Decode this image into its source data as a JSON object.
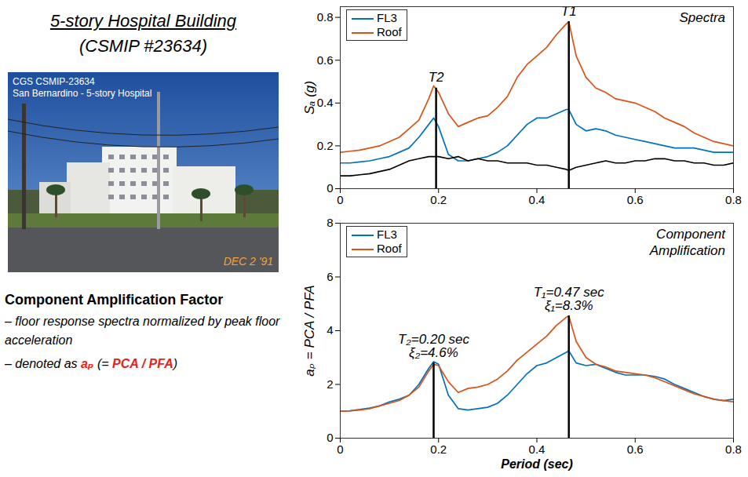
{
  "slide": {
    "title": "5-story Hospital Building",
    "subtitle": "(CSMIP #23634)",
    "photo": {
      "caption": [
        "CGS CSMIP-23634",
        "San Bernardino - 5-story Hospital"
      ],
      "date": "DEC 2 '91"
    },
    "heading": "Component Amplification Factor",
    "notes": [
      [
        {
          "text": "– floor response spectra normalized by peak floor acceleration"
        }
      ],
      [
        {
          "text": "– denoted as "
        },
        {
          "text": "aₚ",
          "color": "#e8211b"
        },
        {
          "text": " (= "
        },
        {
          "text": "PCA / PFA",
          "color": "#e8211b"
        },
        {
          "text": ")"
        }
      ]
    ]
  },
  "chart_data": [
    {
      "type": "line",
      "title": "Spectra",
      "ylabel": "Sₐ (g)",
      "x": [
        0,
        0.02,
        0.04,
        0.06,
        0.08,
        0.1,
        0.12,
        0.14,
        0.16,
        0.18,
        0.19,
        0.2,
        0.22,
        0.24,
        0.26,
        0.28,
        0.3,
        0.32,
        0.34,
        0.36,
        0.38,
        0.4,
        0.42,
        0.44,
        0.46,
        0.465,
        0.48,
        0.5,
        0.52,
        0.54,
        0.56,
        0.58,
        0.6,
        0.62,
        0.64,
        0.66,
        0.68,
        0.7,
        0.72,
        0.74,
        0.76,
        0.78,
        0.8
      ],
      "xlim": [
        0,
        0.8
      ],
      "xticks": [
        0,
        0.2,
        0.4,
        0.6,
        0.8
      ],
      "ylim": [
        0,
        0.85
      ],
      "yticks": [
        0,
        0.2,
        0.4,
        0.6,
        0.8
      ],
      "grid": false,
      "legend": "top-left",
      "series": [
        {
          "name": "FL3",
          "color": "#0072bd",
          "values": [
            0.12,
            0.12,
            0.125,
            0.13,
            0.14,
            0.15,
            0.17,
            0.19,
            0.24,
            0.3,
            0.33,
            0.29,
            0.16,
            0.13,
            0.13,
            0.14,
            0.15,
            0.17,
            0.2,
            0.25,
            0.3,
            0.33,
            0.33,
            0.35,
            0.37,
            0.37,
            0.3,
            0.27,
            0.28,
            0.27,
            0.25,
            0.24,
            0.23,
            0.22,
            0.21,
            0.2,
            0.19,
            0.19,
            0.19,
            0.18,
            0.17,
            0.17,
            0.17
          ]
        },
        {
          "name": "Roof",
          "color": "#d95319",
          "values": [
            0.17,
            0.175,
            0.18,
            0.19,
            0.2,
            0.22,
            0.24,
            0.28,
            0.32,
            0.42,
            0.48,
            0.45,
            0.35,
            0.29,
            0.31,
            0.33,
            0.34,
            0.38,
            0.43,
            0.52,
            0.58,
            0.62,
            0.66,
            0.72,
            0.77,
            0.78,
            0.62,
            0.52,
            0.47,
            0.45,
            0.42,
            0.41,
            0.4,
            0.38,
            0.36,
            0.33,
            0.31,
            0.29,
            0.26,
            0.24,
            0.22,
            0.21,
            0.2
          ]
        },
        {
          "color": "#000000",
          "values": [
            0.06,
            0.06,
            0.065,
            0.07,
            0.08,
            0.09,
            0.11,
            0.13,
            0.14,
            0.15,
            0.15,
            0.15,
            0.14,
            0.15,
            0.13,
            0.14,
            0.13,
            0.13,
            0.12,
            0.12,
            0.12,
            0.11,
            0.11,
            0.1,
            0.09,
            0.085,
            0.1,
            0.11,
            0.12,
            0.13,
            0.12,
            0.12,
            0.13,
            0.13,
            0.14,
            0.14,
            0.13,
            0.13,
            0.12,
            0.12,
            0.11,
            0.11,
            0.12
          ]
        }
      ],
      "annotations": [
        {
          "x": 0.195,
          "y": 0.47,
          "text": [
            "T2"
          ]
        },
        {
          "x": 0.465,
          "y": 0.78,
          "text": [
            "T1"
          ]
        }
      ]
    },
    {
      "type": "line",
      "title": "Component Amplification",
      "ylabel": "aₚ = PCA / PFA",
      "xlabel": "Period (sec)",
      "x": [
        0,
        0.02,
        0.04,
        0.06,
        0.08,
        0.1,
        0.12,
        0.14,
        0.16,
        0.18,
        0.19,
        0.2,
        0.22,
        0.24,
        0.26,
        0.28,
        0.3,
        0.32,
        0.34,
        0.36,
        0.38,
        0.4,
        0.42,
        0.44,
        0.46,
        0.465,
        0.48,
        0.5,
        0.52,
        0.54,
        0.56,
        0.58,
        0.6,
        0.62,
        0.64,
        0.66,
        0.68,
        0.7,
        0.72,
        0.74,
        0.76,
        0.78,
        0.8
      ],
      "xlim": [
        0,
        0.8
      ],
      "xticks": [
        0,
        0.2,
        0.4,
        0.6,
        0.8
      ],
      "ylim": [
        0,
        8
      ],
      "yticks": [
        0,
        2,
        4,
        6,
        8
      ],
      "grid": false,
      "legend": "top-left",
      "series": [
        {
          "name": "FL3",
          "color": "#0072bd",
          "values": [
            1.0,
            1.02,
            1.07,
            1.12,
            1.2,
            1.35,
            1.45,
            1.6,
            2.0,
            2.6,
            2.85,
            2.75,
            1.6,
            1.1,
            1.05,
            1.1,
            1.15,
            1.3,
            1.6,
            2.0,
            2.4,
            2.7,
            2.8,
            3.0,
            3.2,
            3.25,
            2.8,
            2.7,
            2.75,
            2.6,
            2.45,
            2.35,
            2.35,
            2.35,
            2.3,
            2.2,
            2.0,
            1.85,
            1.7,
            1.55,
            1.45,
            1.4,
            1.45
          ]
        },
        {
          "name": "Roof",
          "color": "#d95319",
          "values": [
            1.0,
            1.02,
            1.05,
            1.1,
            1.2,
            1.3,
            1.4,
            1.6,
            1.9,
            2.5,
            2.75,
            2.7,
            2.1,
            1.7,
            1.85,
            1.9,
            2.0,
            2.2,
            2.5,
            2.9,
            3.2,
            3.5,
            3.8,
            4.2,
            4.5,
            4.55,
            3.6,
            3.0,
            2.75,
            2.65,
            2.5,
            2.45,
            2.4,
            2.35,
            2.25,
            2.1,
            1.95,
            1.8,
            1.65,
            1.55,
            1.45,
            1.4,
            1.35
          ]
        }
      ],
      "annotations": [
        {
          "x": 0.19,
          "y": 2.8,
          "text": [
            "T₂=0.20 sec",
            "ξ₂=4.6%"
          ]
        },
        {
          "x": 0.465,
          "y": 4.55,
          "text": [
            "T₁=0.47 sec",
            "ξ₁=8.3%"
          ]
        }
      ]
    }
  ]
}
